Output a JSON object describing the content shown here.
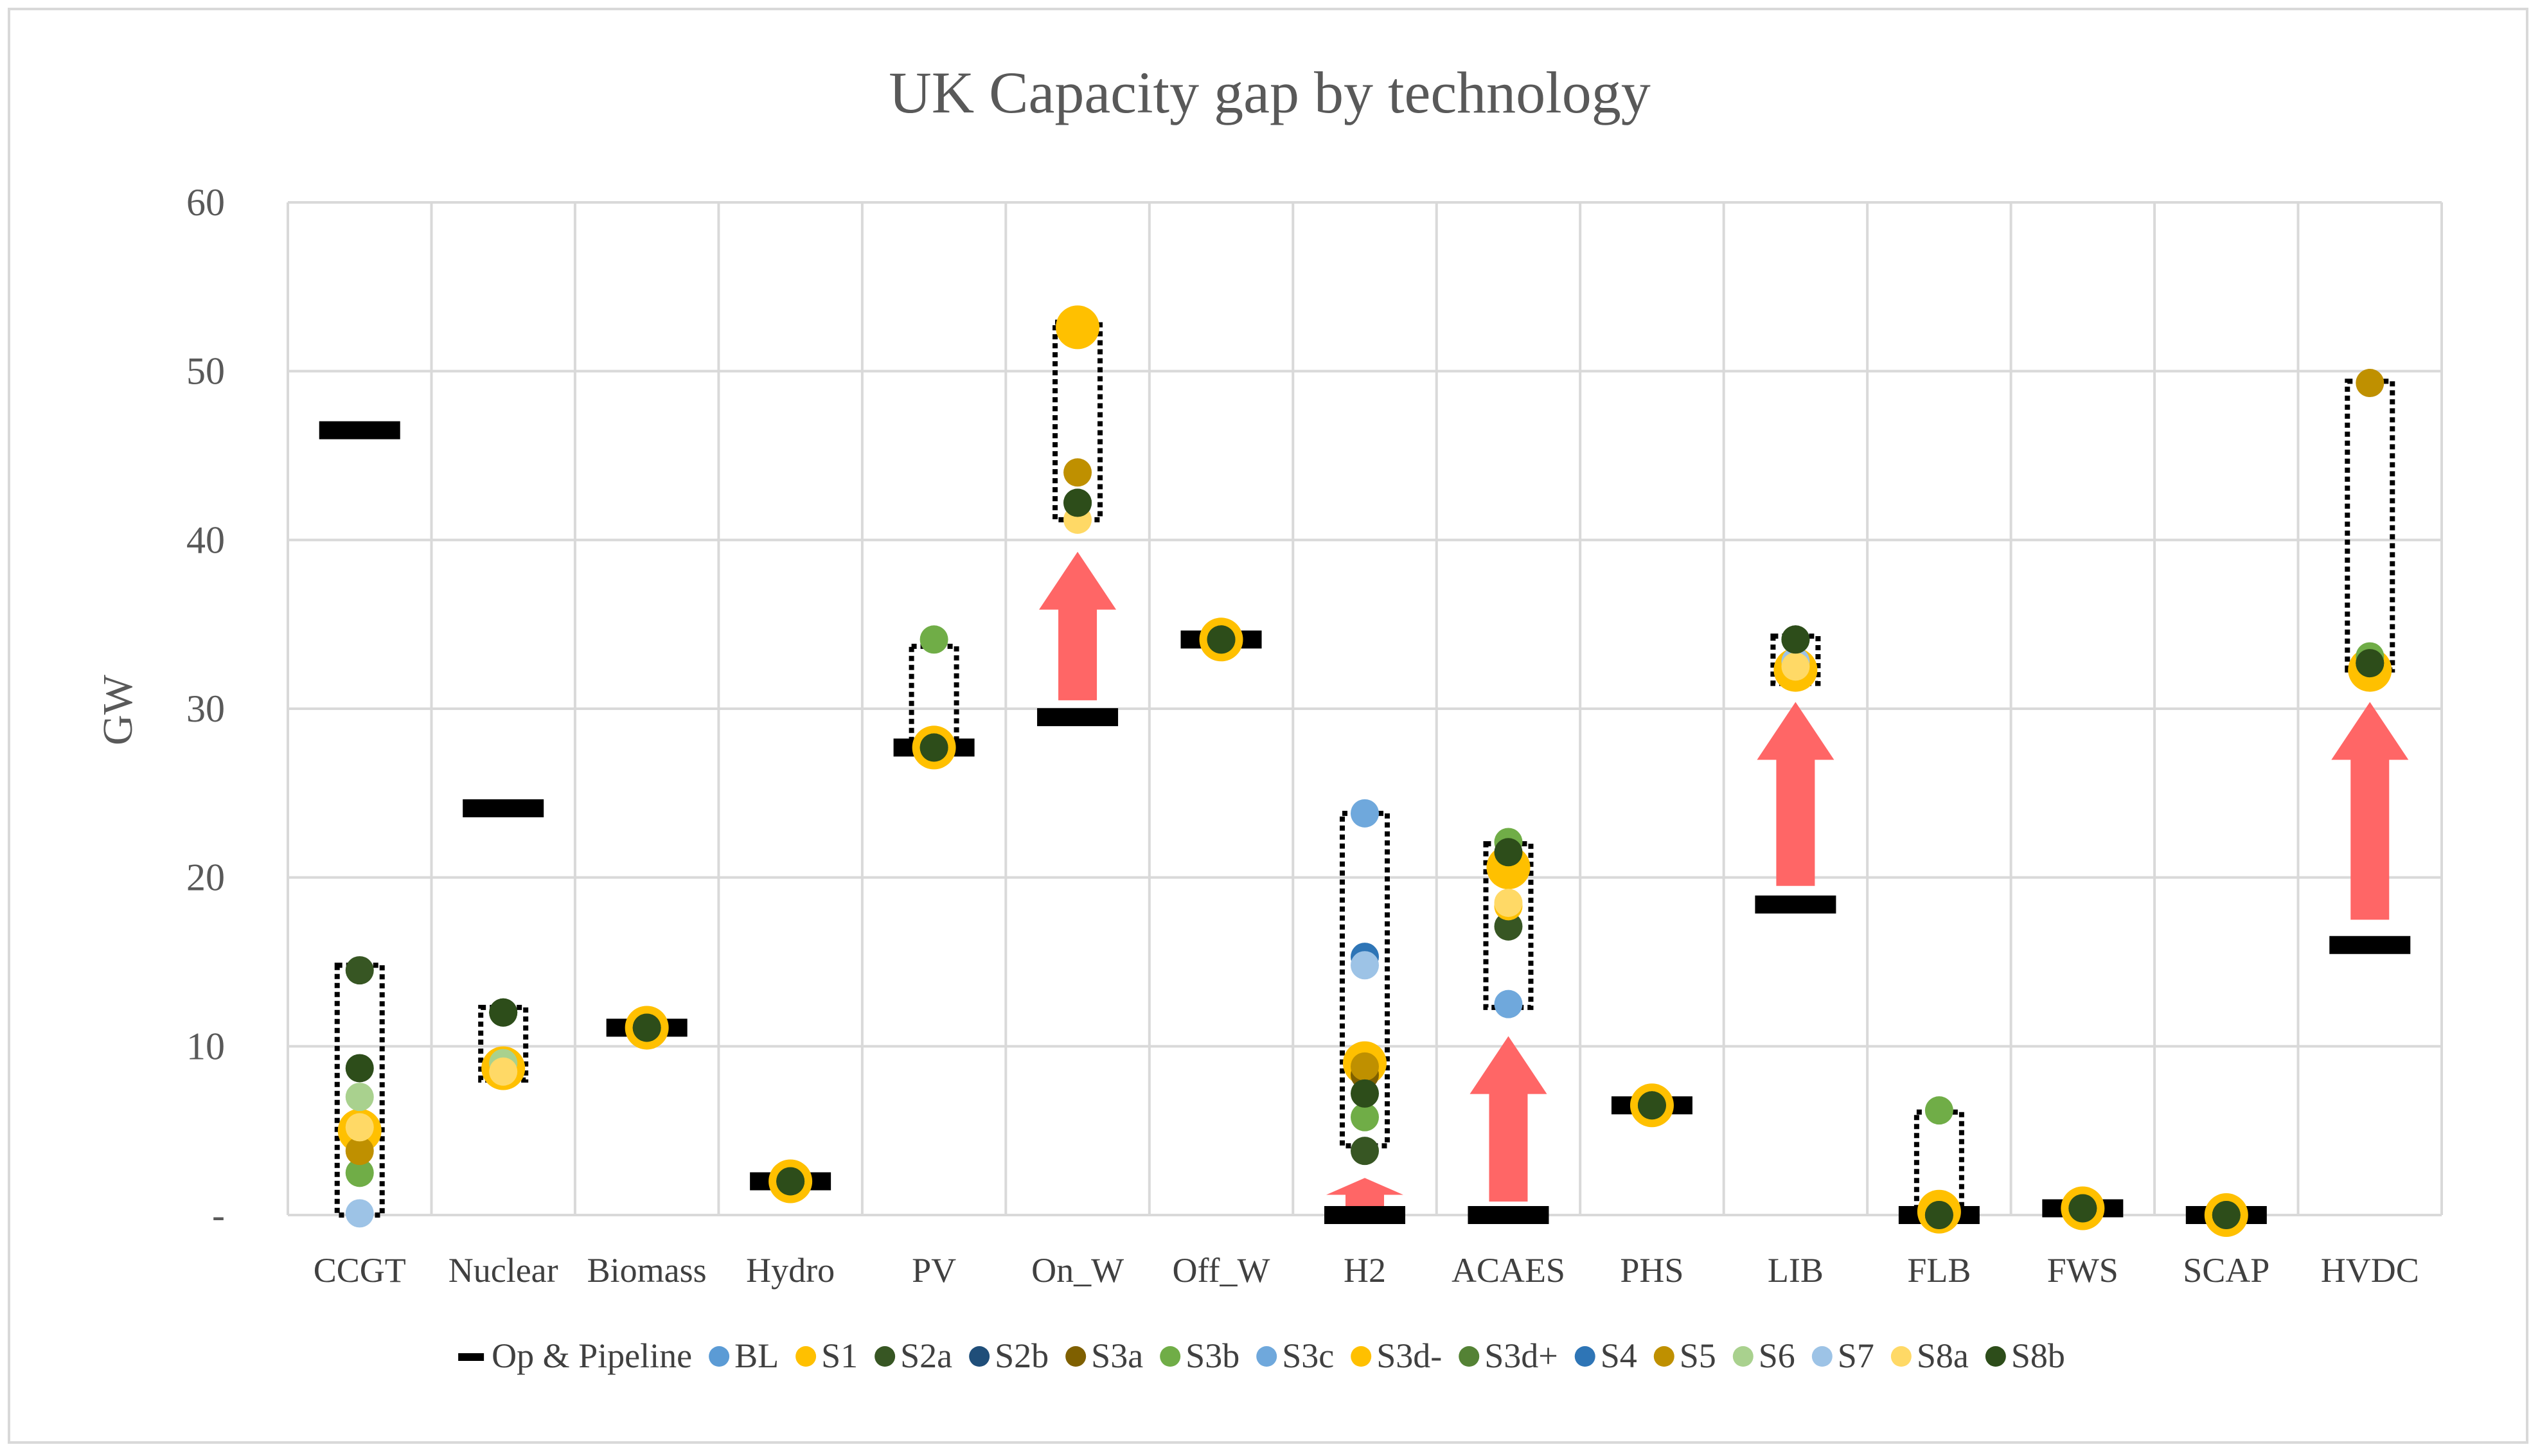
{
  "chart_data": {
    "type": "scatter",
    "title": "UK Capacity gap by technology",
    "xlabel": "",
    "ylabel": "GW",
    "ylim": [
      0,
      60
    ],
    "yticks": [
      {
        "value": 0,
        "label": "-"
      },
      {
        "value": 10,
        "label": "10"
      },
      {
        "value": 20,
        "label": "20"
      },
      {
        "value": 30,
        "label": "30"
      },
      {
        "value": 40,
        "label": "40"
      },
      {
        "value": 50,
        "label": "50"
      },
      {
        "value": 60,
        "label": "60"
      }
    ],
    "grid": true,
    "legend_position": "bottom",
    "categories": [
      "CCGT",
      "Nuclear",
      "Biomass",
      "Hydro",
      "PV",
      "On_W",
      "Off_W",
      "H2",
      "ACAES",
      "PHS",
      "LIB",
      "FLB",
      "FWS",
      "SCAP",
      "HVDC"
    ],
    "op_pipeline": {
      "name": "Op & Pipeline",
      "color": "#000000",
      "values": [
        46.5,
        24.1,
        11.1,
        2.0,
        27.7,
        29.5,
        34.1,
        0.0,
        0.0,
        6.5,
        18.4,
        0.0,
        0.4,
        0.0,
        16.0
      ]
    },
    "series": [
      {
        "name": "BL",
        "color": "#5b9bd5",
        "values": [
          null,
          null,
          null,
          null,
          null,
          null,
          null,
          null,
          null,
          null,
          null,
          null,
          null,
          null,
          null
        ]
      },
      {
        "name": "S1",
        "color": "#ffc000",
        "values": [
          5.0,
          8.7,
          11.1,
          2.0,
          27.7,
          52.6,
          34.1,
          9.0,
          20.6,
          6.5,
          32.3,
          0.2,
          0.4,
          0.0,
          32.3
        ]
      },
      {
        "name": "S2a",
        "color": "#375623",
        "values": [
          14.5,
          12.0,
          11.1,
          2.0,
          27.7,
          42.2,
          34.1,
          3.8,
          17.1,
          6.5,
          34.1,
          0.0,
          0.4,
          0.0,
          32.7
        ]
      },
      {
        "name": "S2b",
        "color": "#1f4e79",
        "values": [
          null,
          null,
          null,
          null,
          null,
          null,
          null,
          null,
          null,
          null,
          null,
          null,
          null,
          null,
          null
        ]
      },
      {
        "name": "S3a",
        "color": "#7f6000",
        "values": [
          null,
          null,
          null,
          null,
          null,
          null,
          null,
          8.3,
          null,
          null,
          null,
          null,
          null,
          null,
          null
        ]
      },
      {
        "name": "S3b",
        "color": "#70ad47",
        "values": [
          2.5,
          null,
          null,
          null,
          34.1,
          null,
          null,
          5.8,
          22.1,
          null,
          null,
          6.2,
          null,
          null,
          33.1
        ]
      },
      {
        "name": "S3c",
        "color": "#6fa8dc",
        "values": [
          null,
          null,
          null,
          null,
          null,
          null,
          null,
          23.8,
          12.5,
          null,
          null,
          null,
          null,
          null,
          null
        ]
      },
      {
        "name": "S3d-",
        "color": "#ffc000",
        "values": [
          4.2,
          null,
          null,
          null,
          null,
          null,
          null,
          null,
          18.3,
          null,
          null,
          null,
          null,
          null,
          null
        ]
      },
      {
        "name": "S3d+",
        "color": "#548235",
        "values": [
          null,
          null,
          null,
          null,
          null,
          null,
          null,
          null,
          null,
          null,
          null,
          null,
          null,
          null,
          null
        ]
      },
      {
        "name": "S4",
        "color": "#2e75b6",
        "values": [
          null,
          null,
          null,
          null,
          null,
          null,
          null,
          15.3,
          null,
          null,
          null,
          null,
          null,
          null,
          null
        ]
      },
      {
        "name": "S5",
        "color": "#bf9000",
        "values": [
          3.8,
          null,
          null,
          null,
          null,
          44.0,
          null,
          8.8,
          null,
          null,
          null,
          null,
          null,
          null,
          49.3
        ]
      },
      {
        "name": "S6",
        "color": "#a9d18e",
        "values": [
          7.0,
          9.0,
          null,
          null,
          null,
          null,
          null,
          null,
          null,
          null,
          null,
          null,
          null,
          null,
          null
        ]
      },
      {
        "name": "S7",
        "color": "#9dc3e6",
        "values": [
          0.1,
          null,
          null,
          null,
          null,
          null,
          null,
          14.8,
          null,
          null,
          32.8,
          null,
          null,
          null,
          null
        ]
      },
      {
        "name": "S8a",
        "color": "#ffd966",
        "values": [
          5.2,
          8.5,
          null,
          null,
          null,
          41.2,
          null,
          null,
          18.5,
          null,
          32.5,
          null,
          null,
          null,
          null
        ]
      },
      {
        "name": "S8b",
        "color": "#2d4d1a",
        "values": [
          8.7,
          12.0,
          11.1,
          2.0,
          27.7,
          42.2,
          34.1,
          7.2,
          21.5,
          6.5,
          34.1,
          0.0,
          0.4,
          0.0,
          32.7
        ]
      }
    ],
    "ranges": [
      {
        "category": "CCGT",
        "low": 0.0,
        "high": 14.8
      },
      {
        "category": "Nuclear",
        "low": 8.0,
        "high": 12.3
      },
      {
        "category": "PV",
        "low": 27.4,
        "high": 33.7
      },
      {
        "category": "On_W",
        "low": 41.2,
        "high": 52.9
      },
      {
        "category": "H2",
        "low": 4.1,
        "high": 23.8
      },
      {
        "category": "ACAES",
        "low": 12.3,
        "high": 22.0
      },
      {
        "category": "LIB",
        "low": 31.5,
        "high": 34.3
      },
      {
        "category": "FLB",
        "low": 0.0,
        "high": 6.1
      },
      {
        "category": "HVDC",
        "low": 32.3,
        "high": 49.4
      }
    ],
    "gap_arrows": [
      {
        "category": "On_W",
        "from": 30.5,
        "to": 39.3
      },
      {
        "category": "H2",
        "from": 0.2,
        "to": 2.2
      },
      {
        "category": "ACAES",
        "from": 0.8,
        "to": 10.6
      },
      {
        "category": "LIB",
        "from": 19.5,
        "to": 30.4
      },
      {
        "category": "HVDC",
        "from": 17.5,
        "to": 30.4
      }
    ],
    "arrow_color": "#ff6666"
  }
}
